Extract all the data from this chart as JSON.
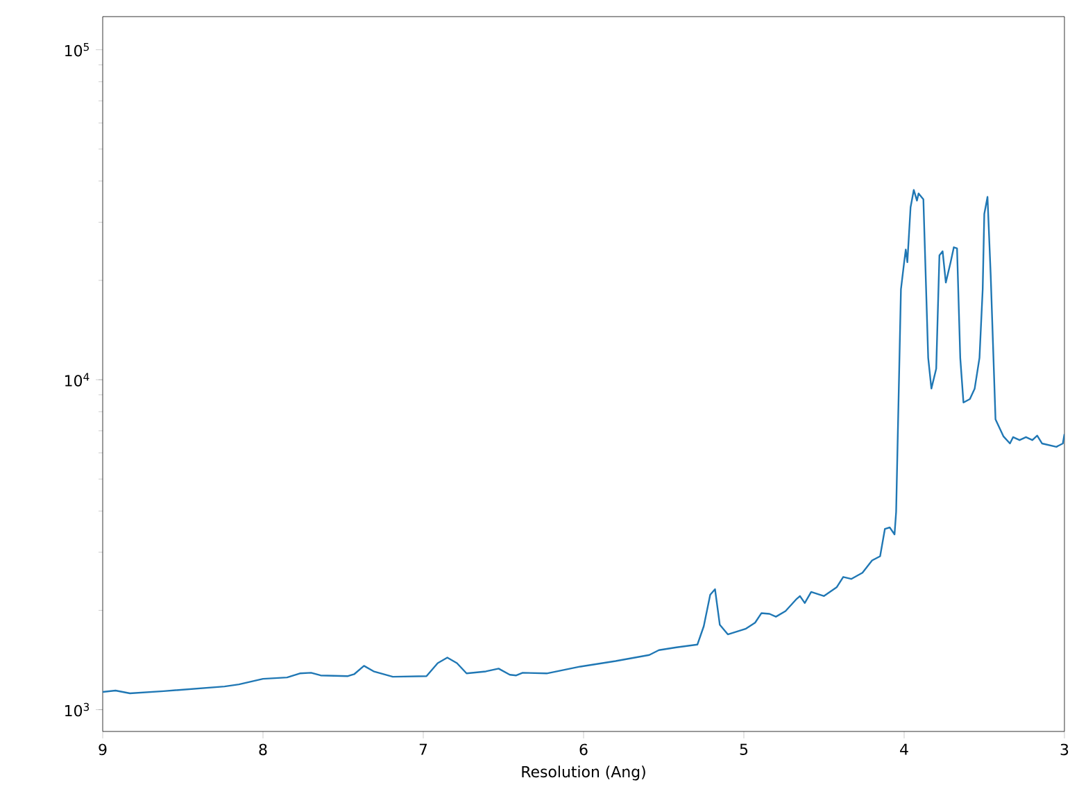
{
  "chart_data": {
    "type": "line",
    "xlabel": "Resolution (Ang)",
    "log": "y",
    "color": "#1f77b4",
    "xlim": [
      9,
      3
    ],
    "ylim": [
      859,
      126000
    ],
    "xticks": [
      9,
      8,
      7,
      6,
      5,
      4,
      3
    ],
    "yticks": [
      {
        "value": 1000,
        "label": "10$^{3}$"
      },
      {
        "value": 10000,
        "label": "10$^{4}$"
      },
      {
        "value": 100000,
        "label": "10$^{5}$"
      }
    ],
    "x": [
      9.0,
      8.92,
      8.83,
      8.62,
      8.24,
      8.15,
      8.0,
      7.85,
      7.77,
      7.7,
      7.64,
      7.47,
      7.43,
      7.37,
      7.31,
      7.19,
      6.98,
      6.91,
      6.85,
      6.79,
      6.73,
      6.61,
      6.53,
      6.46,
      6.42,
      6.38,
      6.23,
      6.02,
      5.8,
      5.59,
      5.53,
      5.42,
      5.29,
      5.25,
      5.21,
      5.18,
      5.15,
      5.1,
      4.99,
      4.93,
      4.89,
      4.84,
      4.8,
      4.74,
      4.67,
      4.65,
      4.62,
      4.58,
      4.5,
      4.42,
      4.38,
      4.33,
      4.26,
      4.2,
      4.15,
      4.12,
      4.09,
      4.06,
      4.05,
      4.02,
      4.0,
      3.99,
      3.98,
      3.96,
      3.94,
      3.92,
      3.91,
      3.88,
      3.85,
      3.83,
      3.8,
      3.78,
      3.76,
      3.74,
      3.71,
      3.69,
      3.67,
      3.65,
      3.63,
      3.59,
      3.56,
      3.53,
      3.51,
      3.5,
      3.48,
      3.46,
      3.43,
      3.38,
      3.34,
      3.32,
      3.28,
      3.24,
      3.2,
      3.17,
      3.14,
      3.05,
      3.01,
      3.0
    ],
    "values": [
      1132,
      1143,
      1121,
      1138,
      1176,
      1193,
      1240,
      1252,
      1288,
      1294,
      1270,
      1264,
      1282,
      1358,
      1307,
      1258,
      1264,
      1384,
      1438,
      1384,
      1288,
      1306,
      1332,
      1276,
      1270,
      1294,
      1288,
      1351,
      1404,
      1465,
      1515,
      1545,
      1575,
      1791,
      2230,
      2318,
      1808,
      1691,
      1757,
      1835,
      1962,
      1952,
      1913,
      1990,
      2168,
      2210,
      2105,
      2274,
      2210,
      2352,
      2525,
      2490,
      2600,
      2833,
      2918,
      3532,
      3567,
      3398,
      3977,
      18800,
      22700,
      24800,
      22700,
      33300,
      37600,
      34900,
      36700,
      35200,
      11650,
      9400,
      10800,
      23800,
      24500,
      19700,
      22700,
      25200,
      25000,
      11650,
      8530,
      8740,
      9400,
      11650,
      18800,
      31800,
      35800,
      20700,
      7580,
      6730,
      6410,
      6700,
      6560,
      6700,
      6560,
      6770,
      6410,
      6260,
      6410,
      6840
    ]
  }
}
